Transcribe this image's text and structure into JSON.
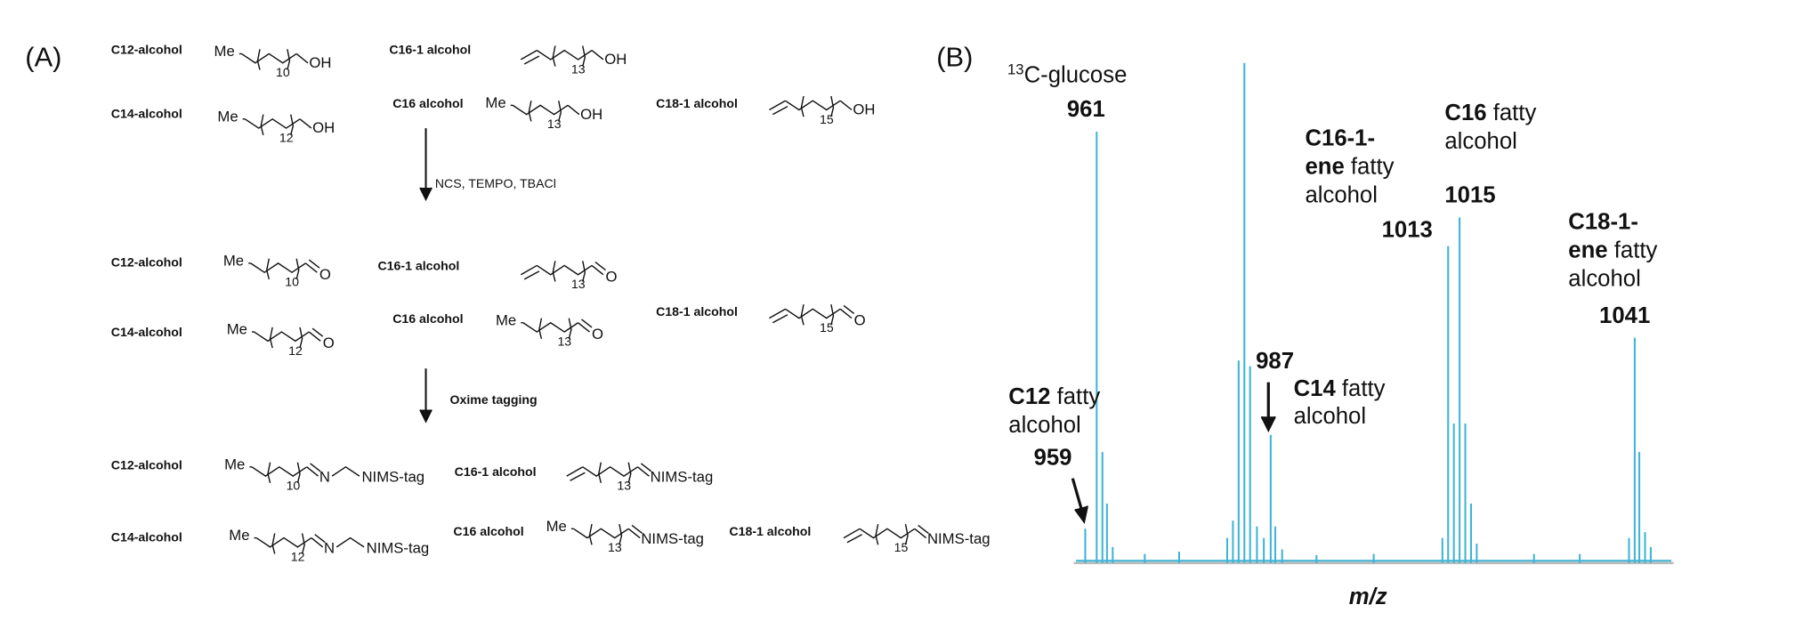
{
  "panel_a": {
    "label": "(A)",
    "alcohols": [
      {
        "name": "C12-alcohol",
        "me": "Me",
        "n": "10",
        "end": "OH"
      },
      {
        "name": "C14-alcohol",
        "me": "Me",
        "n": "12",
        "end": "OH"
      },
      {
        "name": "C16-1 alcohol",
        "n": "13",
        "end": "OH"
      },
      {
        "name": "C16 alcohol",
        "me": "Me",
        "n": "13",
        "end": "OH"
      },
      {
        "name": "C18-1 alcohol",
        "n": "15",
        "end": "OH"
      }
    ],
    "step_1": "NCS, TEMPO, TBACl",
    "aldehydes": [
      {
        "name": "C12-alcohol",
        "me": "Me",
        "n": "10",
        "end": "O"
      },
      {
        "name": "C14-alcohol",
        "me": "Me",
        "n": "12",
        "end": "O"
      },
      {
        "name": "C16-1 alcohol",
        "n": "13",
        "end": "O"
      },
      {
        "name": "C16 alcohol",
        "me": "Me",
        "n": "13",
        "end": "O"
      },
      {
        "name": "C18-1 alcohol",
        "n": "15",
        "end": "O"
      }
    ],
    "step_2": "Oxime tagging",
    "tagged": [
      {
        "name": "C12-alcohol",
        "me": "Me",
        "n": "10",
        "link": "N",
        "end": "NIMS-tag"
      },
      {
        "name": "C14-alcohol",
        "me": "Me",
        "n": "12",
        "link": "N",
        "end": "NIMS-tag"
      },
      {
        "name": "C16-1 alcohol",
        "n": "13",
        "end": "NIMS-tag"
      },
      {
        "name": "C16 alcohol",
        "me": "Me",
        "n": "13",
        "end": "NIMS-tag"
      },
      {
        "name": "C18-1 alcohol",
        "n": "15",
        "end": "NIMS-tag"
      }
    ]
  },
  "panel_b": {
    "label": "(B)",
    "x_label": "m/z",
    "glucose": {
      "sup": "13",
      "text": "C-glucose",
      "mz": "961"
    },
    "c12": {
      "bold": "C12",
      "text": " fatty",
      "line2": "alcohol",
      "mz": "959"
    },
    "c14": {
      "bold": "C14",
      "text": " fatty",
      "line2": "alcohol",
      "mz": "987"
    },
    "c16_1": {
      "bold": "C16-1-",
      "bold2": "ene",
      "text": " fatty",
      "line2": "alcohol",
      "mz": "1013"
    },
    "c16": {
      "bold": "C16",
      "text": " fatty",
      "line2": "alcohol",
      "mz": "1015"
    },
    "c18_1": {
      "bold": "C18-1-",
      "bold2": "ene",
      "text": " fatty",
      "line2": "alcohol",
      "mz": "1041"
    }
  }
}
